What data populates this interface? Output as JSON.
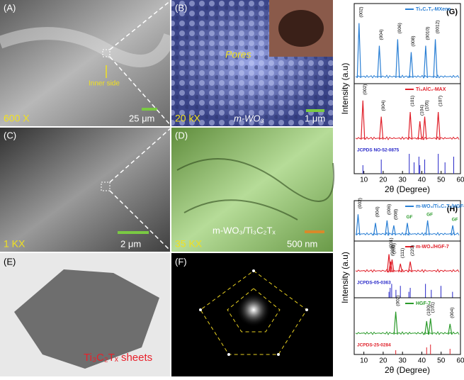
{
  "panels": {
    "a": {
      "label": "(A)",
      "annotation": "Inner side",
      "magnification": "600 X",
      "scale": "25 μm"
    },
    "b": {
      "label": "(B)",
      "annotation": "Pores",
      "magnification": "20 kX",
      "material": "m-WO₃",
      "scale": "1 μm"
    },
    "c": {
      "label": "(C)",
      "magnification": "1 KX",
      "scale": "2 μm"
    },
    "d": {
      "label": "(D)",
      "material": "m-WO₃/Ti₃C₂Tₓ",
      "magnification": "35 KX",
      "scale": "500 nm"
    },
    "e": {
      "label": "(E)",
      "caption": "Ti₃C₂Tₓ sheets"
    },
    "f": {
      "label": "(F)"
    }
  },
  "chart_data": [
    {
      "type": "line",
      "panel_label": "(G)",
      "xlabel": "2θ (Degree)",
      "ylabel": "Intensity (a.u)",
      "xlim": [
        5,
        60
      ],
      "xticks": [
        10,
        20,
        30,
        40,
        50,
        60
      ],
      "series": [
        {
          "name": "Ti₃C₂Tₓ-MXene",
          "color": "#2a7fd4",
          "peaks": [
            7.5,
            18,
            27.5,
            34.5,
            42,
            47
          ],
          "peak_labels": [
            "(002)",
            "(004)",
            "(006)",
            "(008)",
            "(0010)",
            "(0012)"
          ]
        },
        {
          "name": "Ti₃AlC₂-MAX",
          "color": "#e0202a",
          "peaks": [
            9.5,
            19,
            34,
            39,
            41.5,
            48.5
          ],
          "peak_labels": [
            "(002)",
            "(004)",
            "(101)",
            "(104)",
            "(105)",
            "(107)"
          ]
        },
        {
          "name": "JCPDS NO-52-0875",
          "color": "#2525c8",
          "lines": [
            9.5,
            19,
            33.5,
            36,
            38.5,
            39,
            41.5,
            48.5,
            52,
            56.5
          ]
        }
      ]
    },
    {
      "type": "line",
      "panel_label": "(H)",
      "xlabel": "2θ (Degree)",
      "ylabel": "Intensity (a.u)",
      "xlim": [
        5,
        60
      ],
      "xticks": [
        10,
        20,
        30,
        40,
        50,
        60
      ],
      "series": [
        {
          "name": "m-WO₃/Ti₃C₂Tₓ/HGF-7",
          "color": "#2a7fd4",
          "peaks": [
            7,
            16,
            22,
            25.5,
            32.5,
            43,
            56
          ],
          "peak_labels": [
            "(002)",
            "(004)",
            "(006)",
            "(008)",
            "GF",
            "GF",
            "GF"
          ]
        },
        {
          "name": "m-WO₃/HGF-7",
          "color": "#e0202a",
          "peaks": [
            23,
            23.8,
            24.6,
            28.9,
            34
          ],
          "peak_labels": [
            "(001)",
            "(020)",
            "(200)",
            "(111)",
            "(220)"
          ]
        },
        {
          "name": "JCPDS-05-0363",
          "color": "#2525c8",
          "lines": [
            23,
            23.6,
            24.4,
            26.6,
            28.9,
            33.3,
            34,
            41.9,
            44.9,
            49.9,
            55.9
          ]
        },
        {
          "name": "HGF-7",
          "color": "#2a9a2a",
          "peaks": [
            26.5,
            42.5,
            44.5,
            54.6
          ],
          "peak_labels": [
            "(002)",
            "(100)",
            "(101)",
            "(004)"
          ]
        },
        {
          "name": "JCPDS-25-0284",
          "color": "#e0202a",
          "lines": [
            26.5,
            42.5,
            44.5,
            54.6
          ]
        }
      ]
    }
  ]
}
